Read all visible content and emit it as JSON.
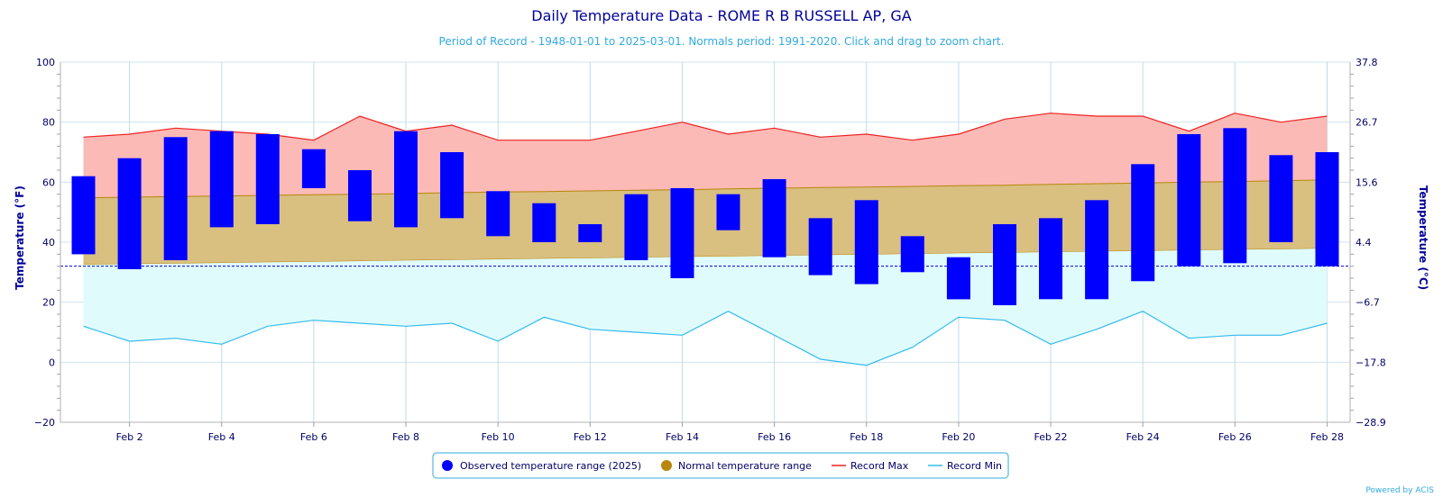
{
  "chart_data": {
    "type": "bar",
    "title": "Daily Temperature Data - ROME R B RUSSELL AP, GA",
    "subtitle": "Period of Record - 1948-01-01 to 2025-03-01. Normals period: 1991-2020. Click and drag to zoom chart.",
    "ylabel_left": "Temperature (°F)",
    "ylabel_right": "Temperature (°C)",
    "ylim": [
      -20,
      100
    ],
    "yticks_left": [
      "100",
      "80",
      "60",
      "40",
      "20",
      "0",
      "−20"
    ],
    "yticks_right": [
      "37.8",
      "26.7",
      "15.6",
      "4.4",
      "−6.7",
      "−17.8",
      "−28.9"
    ],
    "x": [
      1,
      2,
      3,
      4,
      5,
      6,
      7,
      8,
      9,
      10,
      11,
      12,
      13,
      14,
      15,
      16,
      17,
      18,
      19,
      20,
      21,
      22,
      23,
      24,
      25,
      26,
      27,
      28
    ],
    "xticks": [
      "Feb 2",
      "Feb 4",
      "Feb 6",
      "Feb 8",
      "Feb 10",
      "Feb 12",
      "Feb 14",
      "Feb 16",
      "Feb 18",
      "Feb 20",
      "Feb 22",
      "Feb 24",
      "Feb 26",
      "Feb 28"
    ],
    "freezing_line": 32,
    "observed": {
      "name": "Observed temperature range (2025)",
      "color": "#0000ff",
      "low": [
        36,
        31,
        34,
        45,
        46,
        58,
        47,
        45,
        48,
        42,
        40,
        40,
        34,
        28,
        44,
        35,
        29,
        26,
        30,
        21,
        19,
        21,
        21,
        27,
        32,
        33,
        40,
        32
      ],
      "high": [
        62,
        68,
        75,
        77,
        76,
        71,
        64,
        77,
        70,
        57,
        53,
        46,
        56,
        58,
        56,
        61,
        48,
        54,
        42,
        35,
        46,
        48,
        54,
        66,
        76,
        78,
        69,
        70
      ]
    },
    "normal": {
      "name": "Normal temperature range",
      "color": "#b8860b",
      "fill": "#d9bf80",
      "low": [
        32.5,
        32.7,
        32.9,
        33.1,
        33.3,
        33.5,
        33.7,
        33.9,
        34.1,
        34.3,
        34.5,
        34.7,
        34.9,
        35.1,
        35.3,
        35.5,
        35.7,
        35.9,
        36.1,
        36.3,
        36.5,
        36.7,
        36.9,
        37.1,
        37.3,
        37.5,
        37.7,
        37.9
      ],
      "high": [
        54.8,
        55.0,
        55.2,
        55.4,
        55.6,
        55.8,
        56.0,
        56.2,
        56.5,
        56.7,
        56.9,
        57.1,
        57.3,
        57.5,
        57.8,
        58.0,
        58.2,
        58.4,
        58.6,
        58.8,
        59.0,
        59.3,
        59.5,
        59.7,
        60.0,
        60.2,
        60.5,
        60.8
      ]
    },
    "record_max": {
      "name": "Record Max",
      "color": "#ee2222",
      "fill": "#fbbab5",
      "values": [
        75,
        76,
        78,
        77,
        76,
        74,
        82,
        77,
        79,
        74,
        74,
        74,
        77,
        80,
        76,
        78,
        75,
        76,
        74,
        76,
        81,
        83,
        82,
        82,
        77,
        83,
        80,
        82
      ]
    },
    "record_min": {
      "name": "Record Min",
      "color": "#33bbee",
      "fill": "#e0fbfc",
      "values": [
        12,
        7,
        8,
        6,
        12,
        14,
        13,
        12,
        13,
        7,
        15,
        11,
        10,
        9,
        17,
        9,
        1,
        -1,
        5,
        15,
        14,
        6,
        11,
        17,
        8,
        9,
        9,
        13
      ]
    }
  },
  "legend": {
    "observed": "Observed temperature range (2025)",
    "normal": "Normal temperature range",
    "record_max": "Record Max",
    "record_min": "Record Min"
  },
  "credit": "Powered by ACIS"
}
